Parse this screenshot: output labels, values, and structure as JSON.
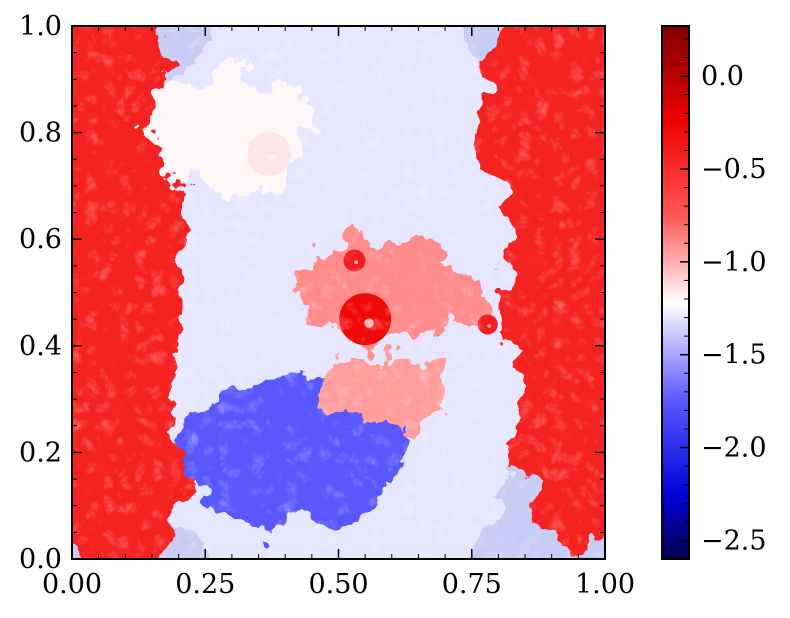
{
  "chart_data": {
    "type": "heatmap",
    "title": "",
    "xlabel": "",
    "ylabel": "",
    "xlim": [
      0.0,
      1.0
    ],
    "ylim": [
      0.0,
      1.0
    ],
    "x_ticks": [
      "0.00",
      "0.25",
      "0.50",
      "0.75",
      "1.00"
    ],
    "y_ticks": [
      "0.0",
      "0.2",
      "0.4",
      "0.6",
      "0.8",
      "1.0"
    ],
    "colormap": "seismic",
    "colorbar": {
      "range": [
        -2.6,
        0.27
      ],
      "ticks": [
        0.0,
        -0.5,
        -1.0,
        -1.5,
        -2.0,
        -2.5
      ],
      "tick_labels": [
        "0.0",
        "−0.5",
        "−1.0",
        "−1.5",
        "−2.0",
        "−2.5"
      ],
      "colors": {
        "min": "#00004c",
        "mid": "#ffffff",
        "max": "#800000"
      }
    },
    "field_description_values": {
      "left_band_level": -0.45,
      "right_band_level": -0.45,
      "center_background_level": -1.3,
      "lower_center_blue_level": -1.75,
      "central_vortex_level": -0.3
    },
    "grid": false
  }
}
